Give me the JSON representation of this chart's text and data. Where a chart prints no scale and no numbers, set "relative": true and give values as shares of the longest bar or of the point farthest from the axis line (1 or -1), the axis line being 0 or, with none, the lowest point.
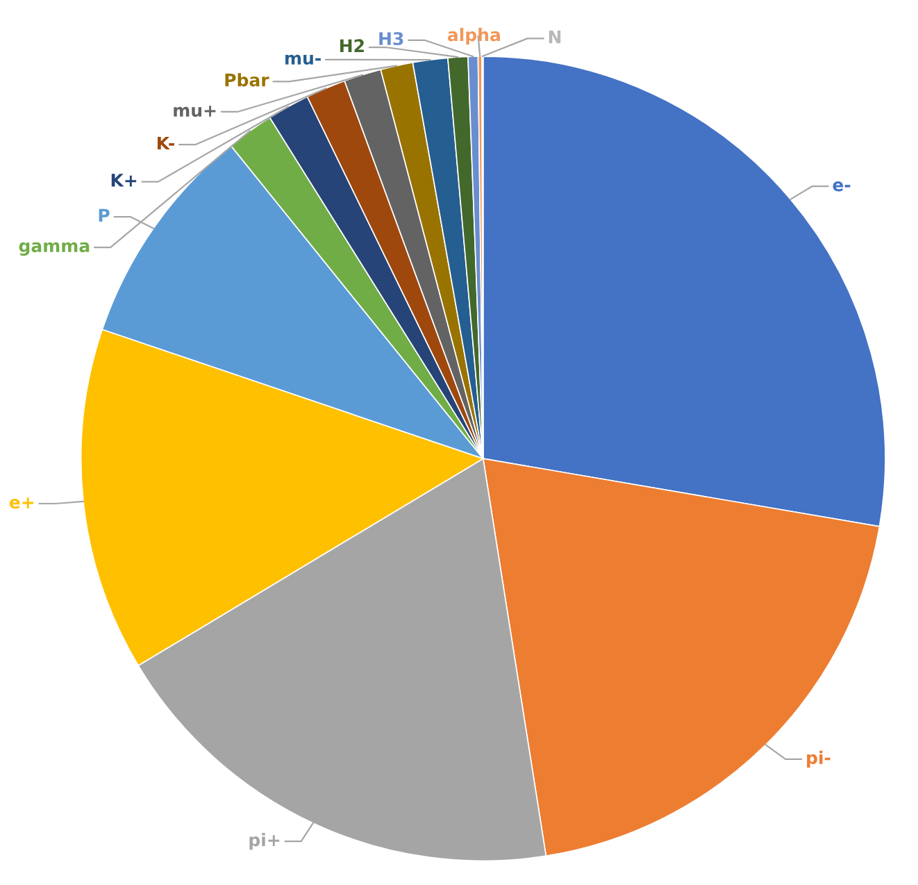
{
  "chart_data": {
    "type": "pie",
    "relative": true,
    "categories": [
      "e-",
      "pi-",
      "pi+",
      "e+",
      "P",
      "gamma",
      "K+",
      "K-",
      "mu+",
      "Pbar",
      "mu-",
      "H2",
      "H3",
      "alpha",
      "N"
    ],
    "values": [
      27.7,
      19.8,
      18.9,
      13.8,
      9.0,
      1.9,
      1.7,
      1.6,
      1.5,
      1.3,
      1.4,
      0.8,
      0.4,
      0.15,
      0.05
    ],
    "colors": [
      "#4472c4",
      "#ed7d31",
      "#a5a5a5",
      "#ffc000",
      "#5b9bd5",
      "#70ad47",
      "#264478",
      "#9e480e",
      "#636363",
      "#997300",
      "#255e91",
      "#43682b",
      "#698ed0",
      "#f1975a",
      "#b7b7b7"
    ]
  }
}
